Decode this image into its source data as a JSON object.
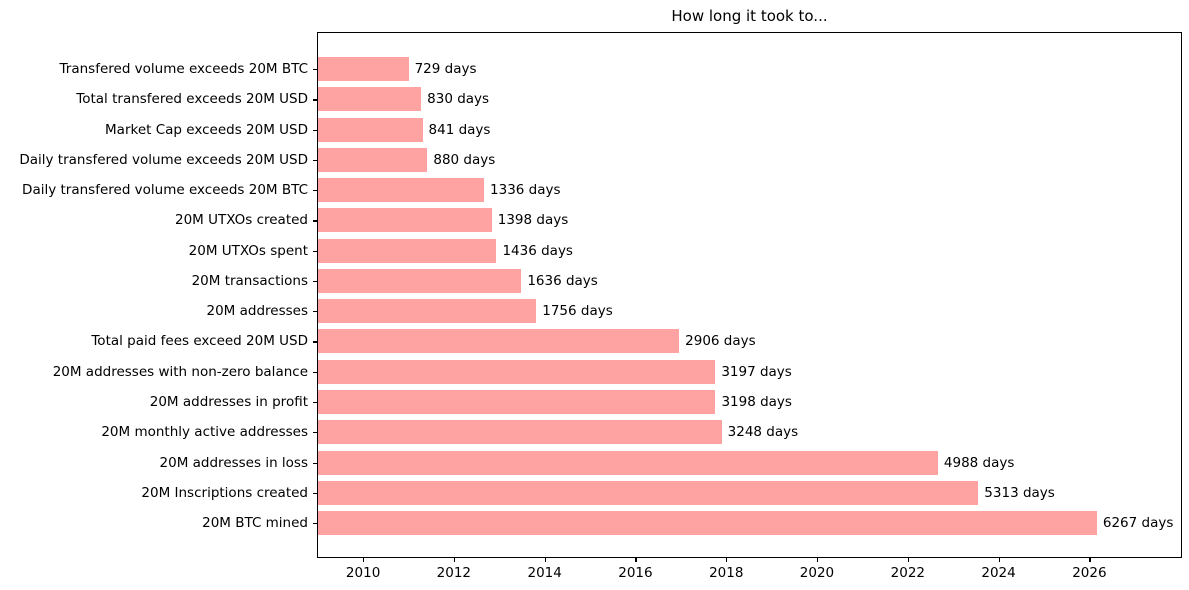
{
  "chart_data": {
    "type": "bar",
    "orientation": "horizontal",
    "title": "How long it took to...",
    "bar_color": "#ffa2a2",
    "axis_color": "#000000",
    "text_color": "#000000",
    "legend": "none",
    "grid": false,
    "x_axis": {
      "tick_labels": [
        "2010",
        "2012",
        "2014",
        "2016",
        "2018",
        "2020",
        "2022",
        "2024",
        "2026"
      ],
      "tick_positions_days": [
        363,
        1093,
        1824,
        2554,
        3285,
        4015,
        4746,
        5476,
        6207
      ],
      "axis_min_days": 0,
      "axis_max_days": 6944
    },
    "unit_suffix": " days",
    "rows": [
      {
        "label": "Transfered volume exceeds 20M BTC",
        "days": 729,
        "value_label": "729 days"
      },
      {
        "label": "Total transfered exceeds 20M USD",
        "days": 830,
        "value_label": "830 days"
      },
      {
        "label": "Market Cap exceeds 20M USD",
        "days": 841,
        "value_label": "841 days"
      },
      {
        "label": "Daily transfered volume exceeds 20M USD",
        "days": 880,
        "value_label": "880 days"
      },
      {
        "label": "Daily transfered volume exceeds 20M BTC",
        "days": 1336,
        "value_label": "1336 days"
      },
      {
        "label": "20M UTXOs created",
        "days": 1398,
        "value_label": "1398 days"
      },
      {
        "label": "20M UTXOs spent",
        "days": 1436,
        "value_label": "1436 days"
      },
      {
        "label": "20M transactions",
        "days": 1636,
        "value_label": "1636 days"
      },
      {
        "label": "20M addresses",
        "days": 1756,
        "value_label": "1756 days"
      },
      {
        "label": "Total paid fees exceed 20M USD",
        "days": 2906,
        "value_label": "2906 days"
      },
      {
        "label": "20M addresses with non-zero balance",
        "days": 3197,
        "value_label": "3197 days"
      },
      {
        "label": "20M addresses in profit",
        "days": 3198,
        "value_label": "3198 days"
      },
      {
        "label": "20M monthly active addresses",
        "days": 3248,
        "value_label": "3248 days"
      },
      {
        "label": "20M addresses in loss",
        "days": 4988,
        "value_label": "4988 days"
      },
      {
        "label": "20M Inscriptions created",
        "days": 5313,
        "value_label": "5313 days"
      },
      {
        "label": "20M BTC mined",
        "days": 6267,
        "value_label": "6267 days"
      }
    ]
  }
}
